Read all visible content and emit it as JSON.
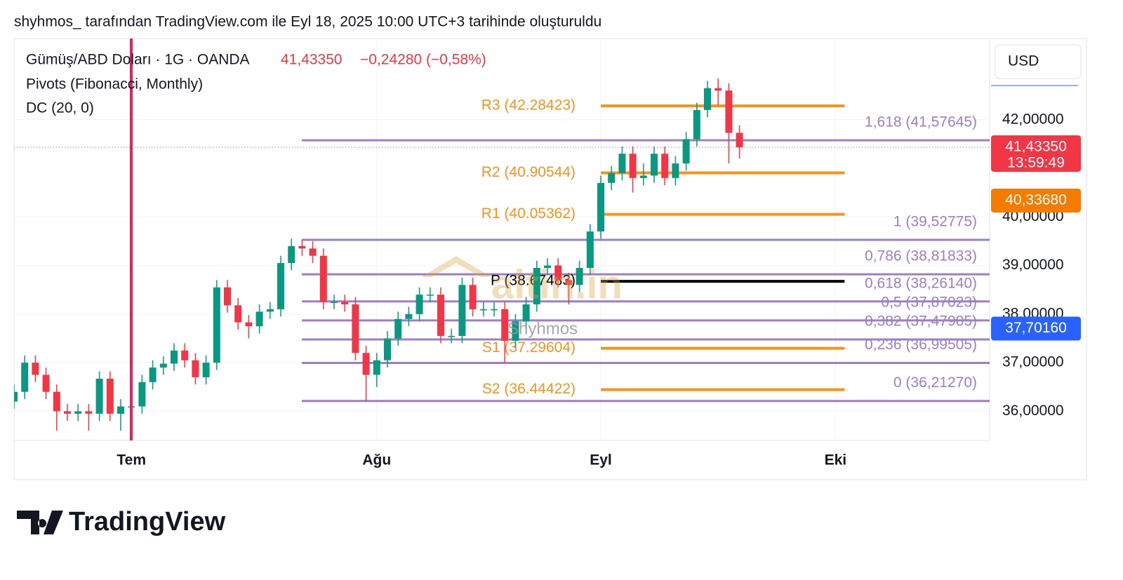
{
  "header": {
    "caption": "shyhmos_ tarafından TradingView.com ile Eyl 18, 2025 10:00 UTC+3 tarihinde oluşturuldu"
  },
  "legend": {
    "symbol": "Gümüş/ABD Doları · 1G · OANDA",
    "price": "41,43350",
    "change": "−0,24280 (−0,58%)",
    "indicators": [
      "Pivots (Fibonacci, Monthly)",
      "DC (20, 0)"
    ]
  },
  "chart_data": {
    "type": "candlestick",
    "currency": "USD",
    "up_color": "#089981",
    "down_color": "#f23645",
    "categories": [
      null,
      null,
      null,
      null,
      null,
      null,
      null,
      null,
      null,
      null,
      null,
      "Tem",
      null,
      null,
      null,
      null,
      null,
      null,
      null,
      null,
      null,
      null,
      null,
      null,
      null,
      null,
      null,
      null,
      null,
      null,
      null,
      null,
      null,
      null,
      "Ağu",
      null,
      null,
      null,
      null,
      null,
      null,
      null,
      null,
      null,
      null,
      null,
      null,
      null,
      null,
      null,
      null,
      null,
      null,
      null,
      null,
      "Eyl",
      null,
      null,
      null,
      null,
      null,
      null,
      null,
      null,
      null,
      null,
      null,
      null,
      null,
      null,
      null,
      null,
      null,
      null,
      null,
      null,
      null,
      "Eki"
    ],
    "open": [
      36.2,
      36.4,
      37.0,
      36.75,
      36.4,
      36.0,
      35.95,
      36.0,
      35.95,
      36.67,
      35.95,
      36.1,
      36.1,
      36.6,
      36.9,
      36.98,
      37.25,
      37.05,
      36.7,
      37.0,
      38.55,
      38.18,
      37.83,
      37.75,
      38.05,
      38.1,
      39.05,
      39.4,
      39.35,
      39.2,
      38.25,
      38.25,
      38.2,
      37.2,
      36.75,
      37.05,
      37.5,
      37.9,
      38.0,
      38.4,
      38.4,
      37.55,
      37.55,
      38.6,
      38.1,
      38.1,
      38.1,
      37.45,
      37.85,
      38.2,
      38.95,
      39.0,
      38.7,
      38.6,
      38.95,
      39.7,
      40.7,
      40.9,
      41.3,
      40.8,
      40.85,
      41.3,
      40.8,
      41.1,
      41.6,
      42.2,
      42.65,
      42.6,
      41.73,
      null,
      null,
      null,
      null,
      null,
      null,
      null,
      null,
      null
    ],
    "high": [
      36.55,
      37.15,
      37.15,
      36.9,
      36.55,
      36.15,
      36.15,
      36.15,
      36.82,
      36.82,
      36.25,
      36.25,
      36.75,
      37.05,
      37.13,
      37.4,
      37.4,
      37.2,
      37.15,
      38.7,
      38.7,
      38.33,
      37.98,
      38.2,
      38.25,
      39.2,
      39.55,
      39.53,
      39.5,
      39.35,
      38.4,
      38.4,
      38.35,
      37.35,
      37.2,
      37.65,
      38.05,
      38.15,
      38.55,
      38.55,
      38.55,
      37.7,
      38.75,
      38.75,
      38.25,
      38.25,
      38.25,
      38.0,
      38.35,
      39.1,
      39.15,
      39.15,
      38.85,
      39.1,
      39.85,
      40.85,
      41.05,
      41.45,
      41.45,
      41.1,
      41.45,
      41.45,
      41.25,
      41.75,
      42.35,
      42.8,
      42.85,
      42.75,
      41.88,
      null,
      null,
      null,
      null,
      null,
      null,
      null,
      null,
      null
    ],
    "low": [
      36.05,
      36.25,
      36.6,
      36.25,
      35.6,
      35.8,
      35.8,
      35.6,
      35.8,
      35.8,
      35.6,
      35.95,
      35.95,
      36.45,
      36.75,
      36.83,
      36.9,
      36.55,
      36.55,
      36.85,
      38.03,
      37.68,
      37.5,
      37.6,
      37.9,
      37.95,
      38.9,
      39.2,
      39.05,
      38.1,
      38.1,
      38.05,
      37.05,
      36.21,
      36.5,
      36.9,
      37.35,
      37.75,
      37.85,
      38.25,
      37.4,
      37.4,
      37.4,
      37.95,
      37.95,
      37.95,
      37.0,
      37.3,
      37.7,
      38.05,
      38.8,
      38.55,
      38.2,
      38.45,
      38.8,
      39.55,
      40.55,
      40.75,
      40.5,
      40.65,
      40.7,
      40.65,
      40.65,
      40.95,
      41.45,
      42.05,
      42.3,
      41.1,
      41.2,
      null,
      null,
      null,
      null,
      null,
      null,
      null,
      null,
      null
    ],
    "close": [
      36.4,
      37.0,
      36.75,
      36.4,
      36.0,
      35.95,
      36.0,
      35.95,
      36.67,
      35.95,
      36.1,
      36.1,
      36.6,
      36.9,
      36.98,
      37.25,
      37.05,
      36.7,
      37.0,
      38.55,
      38.18,
      37.83,
      37.75,
      38.05,
      38.1,
      39.05,
      39.4,
      39.35,
      39.2,
      38.25,
      38.25,
      38.2,
      37.2,
      36.75,
      37.05,
      37.5,
      37.9,
      38.0,
      38.4,
      38.4,
      37.55,
      37.55,
      38.6,
      38.1,
      38.1,
      38.1,
      37.45,
      37.85,
      38.2,
      38.95,
      39.0,
      38.7,
      38.6,
      38.95,
      39.7,
      40.7,
      40.9,
      41.3,
      40.8,
      40.85,
      41.3,
      40.8,
      41.1,
      41.6,
      42.2,
      42.65,
      42.6,
      41.73,
      41.4335,
      null,
      null,
      null,
      null,
      null,
      null,
      null,
      null,
      null
    ],
    "ylim": [
      35.4,
      43.67
    ],
    "yticks": [
      {
        "value": 36,
        "label": "36,00000"
      },
      {
        "value": 37,
        "label": "37,00000"
      },
      {
        "value": 38,
        "label": "38,00000"
      },
      {
        "value": 39,
        "label": "39,00000"
      },
      {
        "value": 40,
        "label": "40,00000"
      },
      {
        "value": 42,
        "label": "42,00000"
      }
    ],
    "pivots": {
      "color": "#f7931a",
      "pivot_color": "#000000",
      "levels": [
        {
          "label": "R3 (42.28423)",
          "value": 42.28423
        },
        {
          "label": "R2 (40.90544)",
          "value": 40.90544
        },
        {
          "label": "R1 (40.05362)",
          "value": 40.05362
        },
        {
          "label": "P (38.67483)",
          "value": 38.67483
        },
        {
          "label": "S1 (37.29604)",
          "value": 37.29604
        },
        {
          "label": "S2 (36.44422)",
          "value": 36.44422
        }
      ]
    },
    "fibonacci": {
      "color": "#9c7fc7",
      "levels": [
        {
          "label": "1,618 (41,57645)",
          "value": 41.57645
        },
        {
          "label": "1 (39,52775)",
          "value": 39.52775
        },
        {
          "label": "0,786 (38,81833)",
          "value": 38.81833
        },
        {
          "label": "0,618 (38,26140)",
          "value": 38.2614
        },
        {
          "label": "0,5 (37,87023)",
          "value": 37.87023
        },
        {
          "label": "0,382 (37,47905)",
          "value": 37.47905
        },
        {
          "label": "0,236 (36,99505)",
          "value": 36.99505
        },
        {
          "label": "0 (36,21270)",
          "value": 36.2127
        }
      ]
    },
    "price_tags": [
      {
        "label": "41,43350",
        "value": 41.4335,
        "color": "#f23645",
        "countdown": "13:59:49"
      },
      {
        "label": "40,33680",
        "value": 40.3368,
        "color": "#f57c00"
      },
      {
        "label": "37,70160",
        "value": 37.7016,
        "color": "#2962ff"
      }
    ]
  },
  "watermark": {
    "site": "altin.in",
    "author": "Shyhmos"
  },
  "footer": {
    "brand": "TradingView"
  }
}
